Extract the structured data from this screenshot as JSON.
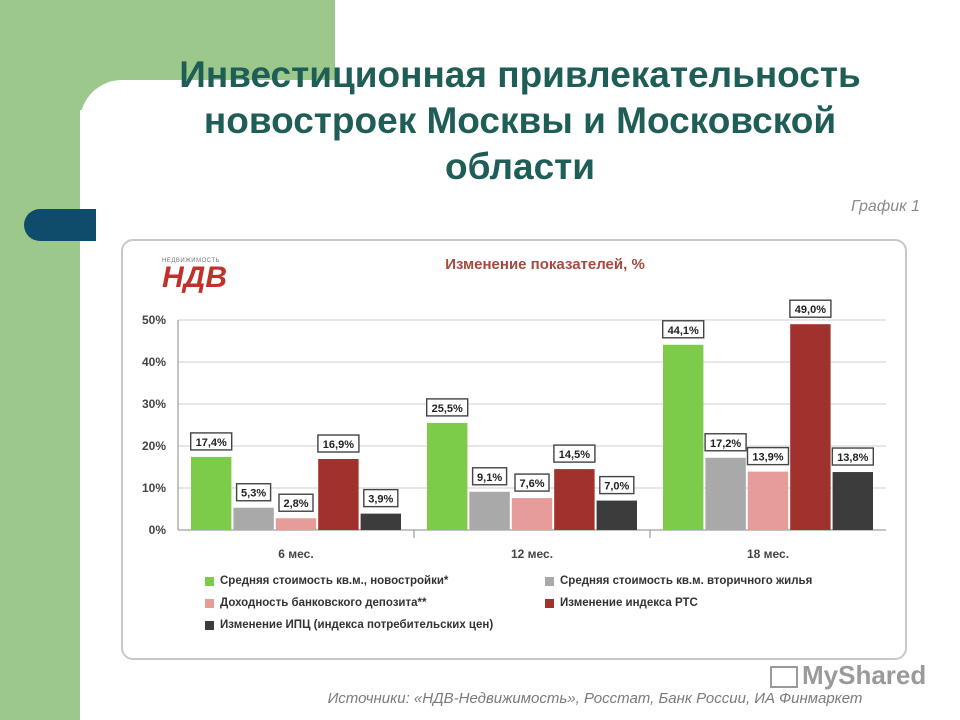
{
  "slide": {
    "title_line1": "Инвестиционная привлекательность",
    "title_line2": "новостроек Москвы и Московской",
    "title_line3": "области",
    "graph_label": "График 1",
    "logo_small": "НЕДВИЖИМОСТЬ",
    "logo_big": "НДВ",
    "sources": "Источники: «НДВ-Недвижимость», Росстат, Банк России, ИА Финмаркет",
    "watermark": "MyShared"
  },
  "chart_data": {
    "type": "bar",
    "title": "Изменение показателей, %",
    "categories": [
      "6 мес.",
      "12 мес.",
      "18 мес."
    ],
    "ylim": [
      0,
      50
    ],
    "yticks": [
      "0%",
      "10%",
      "20%",
      "30%",
      "40%",
      "50%"
    ],
    "ytick_values": [
      0,
      10,
      20,
      30,
      40,
      50
    ],
    "grid": true,
    "legend_position": "bottom",
    "series": [
      {
        "name": "Средняя стоимость кв.м., новостройки*",
        "color": "#7ccc4a",
        "values": [
          17.4,
          25.5,
          44.1
        ],
        "labels": [
          "17,4%",
          "25,5%",
          "44,1%"
        ]
      },
      {
        "name": "Средняя стоимость кв.м. вторичного жилья",
        "color": "#a9a9a9",
        "values": [
          5.3,
          9.1,
          17.2
        ],
        "labels": [
          "5,3%",
          "9,1%",
          "17,2%"
        ]
      },
      {
        "name": "Доходность банковского депозита**",
        "color": "#e69c98",
        "values": [
          2.8,
          7.6,
          13.9
        ],
        "labels": [
          "2,8%",
          "7,6%",
          "13,9%"
        ]
      },
      {
        "name": "Изменение индекса РТС",
        "color": "#a1312d",
        "values": [
          16.9,
          14.5,
          49.0
        ],
        "labels": [
          "16,9%",
          "14,5%",
          "49,0%"
        ]
      },
      {
        "name": "Изменение ИПЦ (индекса потребительских цен)",
        "color": "#3c3c3c",
        "values": [
          3.9,
          7.0,
          13.8
        ],
        "labels": [
          "3,9%",
          "7,0%",
          "13,8%"
        ]
      }
    ]
  }
}
